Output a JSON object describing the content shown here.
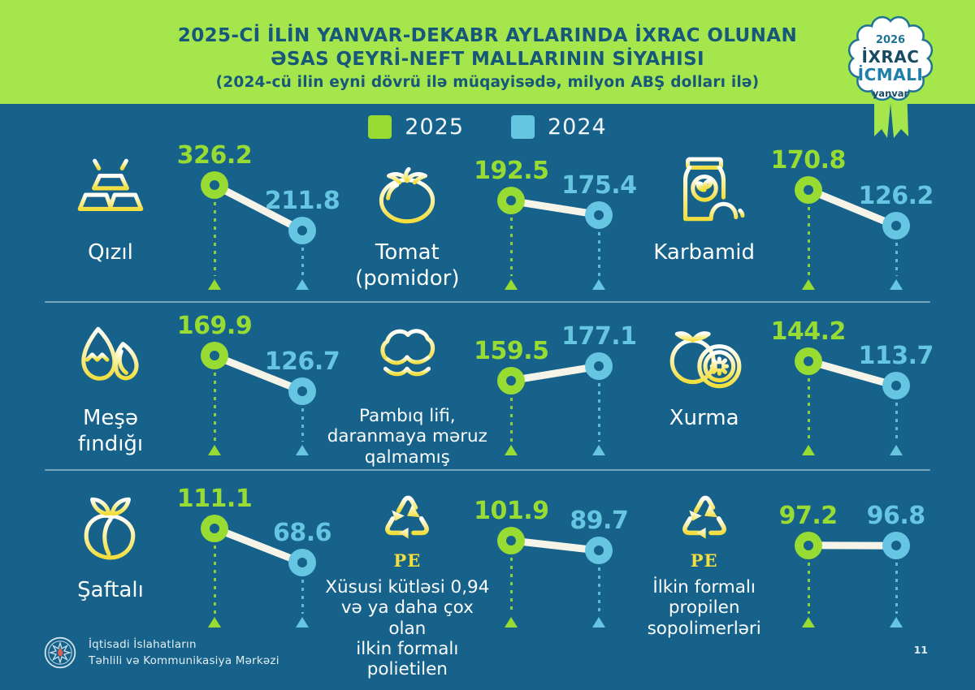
{
  "page": {
    "background_color": "#16628A",
    "page_number": "11"
  },
  "header": {
    "background_color": "#A5E64C",
    "text_color": "#17577A",
    "title_line1": "2025-Cİ İLİN YANVAR-DEKABR AYLARINDA İXRAC OLUNAN",
    "title_line2": "ƏSAS QEYRİ-NEFT MALLARININ SİYAHISI",
    "subtitle": "(2024-cü ilin eyni dövrü ilə müqayisədə, milyon ABŞ dolları ilə)"
  },
  "badge": {
    "year": "2026",
    "line1": "İXRAC",
    "line2": "İCMALI",
    "month": "yanvar"
  },
  "legend": {
    "items": [
      {
        "label": "2025",
        "color": "#97DB33"
      },
      {
        "label": "2024",
        "color": "#66C5E0"
      }
    ]
  },
  "chart_data": {
    "type": "slopegraph",
    "title": "2025-ci ilin yanvar-dekabr aylarında ixrac olunan əsas qeyri-neft mallarının siyahısı",
    "unit": "milyon ABŞ dolları ilə",
    "years": [
      "2025",
      "2024"
    ],
    "series_colors": {
      "2025": "#97DB33",
      "2024": "#66C5E0"
    },
    "items": [
      {
        "label": "Qızıl",
        "icon": "gold",
        "v2025": 326.2,
        "v2024": 211.8
      },
      {
        "label": "Tomat\n(pomidor)",
        "icon": "tomato",
        "v2025": 192.5,
        "v2024": 175.4
      },
      {
        "label": "Karbamid",
        "icon": "bag",
        "v2025": 170.8,
        "v2024": 126.2
      },
      {
        "label": "Meşə\nfındığı",
        "icon": "nut",
        "v2025": 169.9,
        "v2024": 126.7
      },
      {
        "label": "Pambıq lifi,\ndaranmaya məruz\nqalmamış",
        "icon": "cotton",
        "v2025": 159.5,
        "v2024": 177.1
      },
      {
        "label": "Xurma",
        "icon": "persimmon",
        "v2025": 144.2,
        "v2024": 113.7
      },
      {
        "label": "Şaftalı",
        "icon": "peach",
        "v2025": 111.1,
        "v2024": 68.6
      },
      {
        "label": "Xüsusi kütləsi 0,94\nvə ya daha çox olan\nilkin formalı polietilen",
        "icon": "recycle",
        "icon_caption": "PE",
        "v2025": 101.9,
        "v2024": 89.7
      },
      {
        "label": "İlkin formalı\npropilen\nsopolimerləri",
        "icon": "recycle",
        "icon_caption": "PE",
        "v2025": 97.2,
        "v2024": 96.8
      }
    ]
  },
  "footer": {
    "org_line1": "İqtisadi İslahatların",
    "org_line2": "Təhlili və Kommunikasiya Mərkəzi",
    "page_number": "11"
  }
}
